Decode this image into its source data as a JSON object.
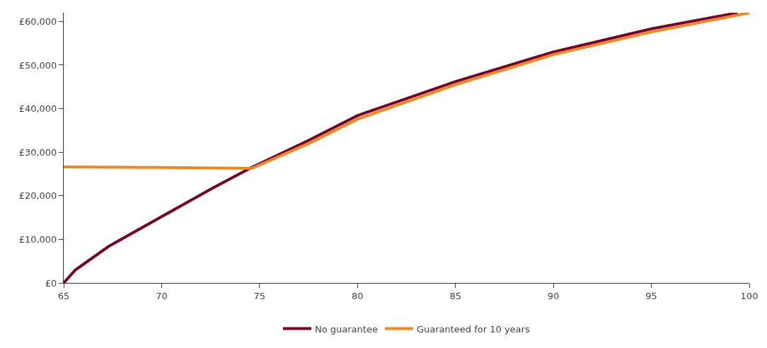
{
  "chart_data": {
    "type": "line",
    "xlim": [
      65,
      100
    ],
    "xticks": [
      65,
      70,
      75,
      80,
      85,
      90,
      95,
      100
    ],
    "ylim": [
      0,
      62000
    ],
    "yticks": [
      {
        "value": 0,
        "label": "£0"
      },
      {
        "value": 10000,
        "label": "£10,000"
      },
      {
        "value": 20000,
        "label": "£20,000"
      },
      {
        "value": 30000,
        "label": "£30,000"
      },
      {
        "value": 40000,
        "label": "£40,000"
      },
      {
        "value": 50000,
        "label": "£50,000"
      },
      {
        "value": 60000,
        "label": "£60,000"
      }
    ],
    "legend": "bottom",
    "marker": "none",
    "line_style": "solid",
    "series": [
      {
        "name": "No guarantee",
        "color": "#7a0026",
        "x": [
          65,
          65.6,
          67.3,
          70,
          72.5,
          74.5,
          77.5,
          80,
          85,
          90,
          95,
          99.4
        ],
        "values": [
          0,
          3000,
          8400,
          15200,
          21500,
          26300,
          32700,
          38400,
          46200,
          53000,
          58300,
          62000
        ]
      },
      {
        "name": "Guaranteed for 10 years",
        "color": "#f0861e",
        "x": [
          65,
          70,
          74.6,
          77.5,
          80,
          85,
          90,
          95,
          100
        ],
        "values": [
          26600,
          26500,
          26300,
          32000,
          37600,
          45500,
          52400,
          57600,
          62000
        ]
      }
    ]
  }
}
